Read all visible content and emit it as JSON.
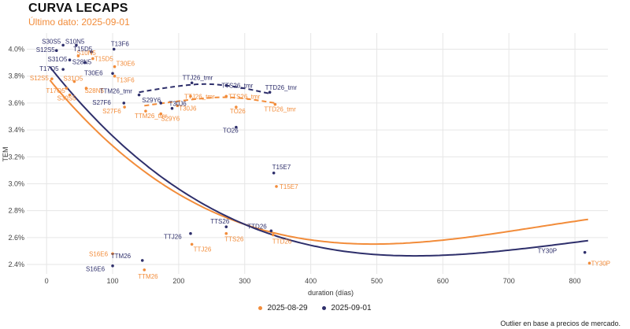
{
  "header": {
    "title": "CURVA LECAPS",
    "subtitle": "Último dato: 2025-09-01"
  },
  "footnote": "Outlier en base a precios de mercado.",
  "colors": {
    "orange": "#f28c3a",
    "navy": "#2e2f6b",
    "grid": "#e6e6e6",
    "tick": "#444444"
  },
  "chart_data": {
    "type": "scatter",
    "title": "CURVA LECAPS",
    "xlabel": "duration (días)",
    "ylabel": "TEM",
    "xlim": [
      -30,
      850
    ],
    "ylim": [
      2.33,
      4.12
    ],
    "xticks": [
      0,
      100,
      200,
      300,
      400,
      500,
      600,
      700,
      800
    ],
    "yticks": [
      2.4,
      2.6,
      2.8,
      3.0,
      3.2,
      3.4,
      3.6,
      3.8,
      4.0
    ],
    "ytick_labels": [
      "2.4%",
      "2.6%",
      "2.8%",
      "3.0%",
      "3.2%",
      "3.4%",
      "3.6%",
      "3.8%",
      "4.0%"
    ],
    "grid": true,
    "legend_position": "bottom-center",
    "series": [
      {
        "name": "2025-08-29",
        "color": "#f28c3a",
        "points": [
          {
            "label": "S12S5",
            "x": 8,
            "y": 3.78
          },
          {
            "label": "S10N5",
            "x": 48,
            "y": 3.95
          },
          {
            "label": "T15D5",
            "x": 70,
            "y": 3.93
          },
          {
            "label": "T17O5",
            "x": 30,
            "y": 3.71
          },
          {
            "label": "S31O5",
            "x": 42,
            "y": 3.76
          },
          {
            "label": "S30S5",
            "x": 35,
            "y": 3.66
          },
          {
            "label": "S28N5",
            "x": 60,
            "y": 3.71
          },
          {
            "label": "T30E6",
            "x": 103,
            "y": 3.87
          },
          {
            "label": "T13F6",
            "x": 103,
            "y": 3.8
          },
          {
            "label": "S27F6",
            "x": 118,
            "y": 3.57
          },
          {
            "label": "TTM26_tmr",
            "x": 150,
            "y": 3.54
          },
          {
            "label": "S29Y6",
            "x": 173,
            "y": 3.52
          },
          {
            "label": "T30J6",
            "x": 198,
            "y": 3.58
          },
          {
            "label": "TTJ26_tmr",
            "x": 218,
            "y": 3.65
          },
          {
            "label": "TTS26_tmr",
            "x": 272,
            "y": 3.65
          },
          {
            "label": "TO26",
            "x": 287,
            "y": 3.57
          },
          {
            "label": "TTD26_tmr",
            "x": 346,
            "y": 3.59
          },
          {
            "label": "T15E7",
            "x": 348,
            "y": 2.98
          },
          {
            "label": "S16E6",
            "x": 100,
            "y": 2.48
          },
          {
            "label": "TTM26",
            "x": 148,
            "y": 2.36
          },
          {
            "label": "TTJ26",
            "x": 220,
            "y": 2.55
          },
          {
            "label": "TTS26",
            "x": 272,
            "y": 2.63
          },
          {
            "label": "TTD26",
            "x": 343,
            "y": 2.62
          },
          {
            "label": "TY30P",
            "x": 822,
            "y": 2.41
          }
        ],
        "fit": {
          "x0": 5,
          "x1": 820,
          "coef": [
            3.8,
            -0.006058,
            9.185e-06,
            -4.123e-09
          ]
        },
        "dashed_fit": [
          [
            148,
            3.58
          ],
          [
            220,
            3.63
          ],
          [
            280,
            3.65
          ],
          [
            346,
            3.6
          ]
        ]
      },
      {
        "name": "2025-09-01",
        "color": "#2e2f6b",
        "points": [
          {
            "label": "S30S5",
            "x": 25,
            "y": 4.03
          },
          {
            "label": "S10N5",
            "x": 45,
            "y": 4.03
          },
          {
            "label": "S12S5",
            "x": 15,
            "y": 3.99
          },
          {
            "label": "T15D5",
            "x": 68,
            "y": 3.98
          },
          {
            "label": "T13F6",
            "x": 102,
            "y": 4.0
          },
          {
            "label": "S31O5",
            "x": 35,
            "y": 3.92
          },
          {
            "label": "S28N5",
            "x": 58,
            "y": 3.9
          },
          {
            "label": "T17O5",
            "x": 25,
            "y": 3.85
          },
          {
            "label": "T30E6",
            "x": 100,
            "y": 3.82
          },
          {
            "label": "S27F6",
            "x": 117,
            "y": 3.6
          },
          {
            "label": "TTM26_tmr",
            "x": 140,
            "y": 3.66
          },
          {
            "label": "S29Y6",
            "x": 173,
            "y": 3.6
          },
          {
            "label": "T30J6",
            "x": 190,
            "y": 3.56
          },
          {
            "label": "TTJ26_tmr",
            "x": 220,
            "y": 3.75
          },
          {
            "label": "TTS26_tmr",
            "x": 272,
            "y": 3.73
          },
          {
            "label": "TTD26_tmr",
            "x": 338,
            "y": 3.68
          },
          {
            "label": "TO26",
            "x": 287,
            "y": 3.42
          },
          {
            "label": "T15E7",
            "x": 344,
            "y": 3.08
          },
          {
            "label": "S16E6",
            "x": 100,
            "y": 2.39
          },
          {
            "label": "TTM26",
            "x": 145,
            "y": 2.43
          },
          {
            "label": "TTJ26",
            "x": 218,
            "y": 2.63
          },
          {
            "label": "TTS26",
            "x": 272,
            "y": 2.68
          },
          {
            "label": "TTD26",
            "x": 340,
            "y": 2.65
          },
          {
            "label": "TY30P",
            "x": 815,
            "y": 2.49
          }
        ],
        "fit": {
          "x0": 5,
          "x1": 820,
          "coef": [
            3.9,
            -0.006283,
            8.68e-06,
            -3.641e-09
          ]
        },
        "dashed_fit": [
          [
            140,
            3.68
          ],
          [
            220,
            3.75
          ],
          [
            280,
            3.73
          ],
          [
            338,
            3.67
          ]
        ]
      }
    ]
  }
}
